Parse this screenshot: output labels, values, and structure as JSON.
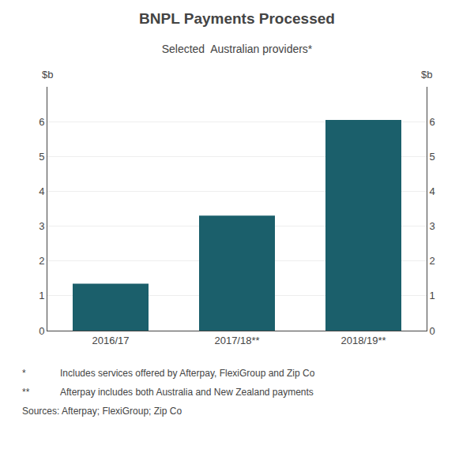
{
  "chart_data": {
    "type": "bar",
    "title": "BNPL Payments Processed",
    "subtitle": "Selected  Australian providers*",
    "categories": [
      "2016/17",
      "2017/18**",
      "2018/19**"
    ],
    "values": [
      1.35,
      3.3,
      6.05
    ],
    "color": "#1b5f6b",
    "ylim": [
      0,
      7
    ],
    "yticks": [
      0,
      1,
      2,
      3,
      4,
      5,
      6
    ],
    "y2lim": [
      0,
      7
    ],
    "y2ticks": [
      0,
      1,
      2,
      3,
      4,
      5,
      6
    ],
    "ylabel": "$b",
    "y2label": "$b",
    "grid": true,
    "annotations": [
      [
        "*",
        "Includes services offered by Afterpay, FlexiGroup and Zip Co"
      ],
      [
        "**",
        "Afterpay includes both Australia and New Zealand payments"
      ],
      [
        "Sources: Afterpay; FlexiGroup; Zip Co"
      ]
    ]
  }
}
